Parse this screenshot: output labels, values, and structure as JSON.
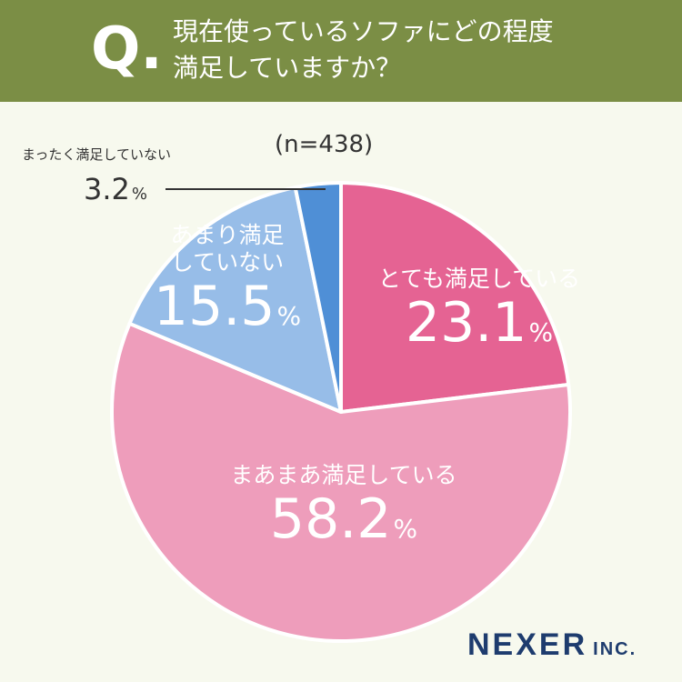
{
  "question": {
    "mark": "Q.",
    "line1": "現在使っているソファにどの程度",
    "line2": "満足していますか？"
  },
  "sample_size_label": "(n=438)",
  "brand": {
    "name": "NEXER",
    "suffix": "INC."
  },
  "colors": {
    "header_bg": "#7b8e45",
    "page_bg": "#f7f9ee",
    "very_satisfied": "#e56393",
    "somewhat_satisfied": "#ee9dbb",
    "not_very_satisfied": "#97bde8",
    "not_at_all_satisfied": "#4f8fd6"
  },
  "chart_data": {
    "type": "pie",
    "title": "現在使っているソファにどの程度満足していますか？",
    "start": "12 o'clock, clockwise",
    "slices": [
      {
        "label": "とても満足している",
        "value": 23.1,
        "display": "23.1",
        "unit": "%",
        "color": "#e56393"
      },
      {
        "label": "まあまあ満足している",
        "value": 58.2,
        "display": "58.2",
        "unit": "%",
        "color": "#ee9dbb"
      },
      {
        "label": "あまり満足していない",
        "label_lines": [
          "あまり満足",
          "していない"
        ],
        "value": 15.5,
        "display": "15.5",
        "unit": "%",
        "color": "#97bde8"
      },
      {
        "label": "まったく満足していない",
        "value": 3.2,
        "display": "3.2",
        "unit": "%",
        "color": "#4f8fd6"
      }
    ]
  }
}
